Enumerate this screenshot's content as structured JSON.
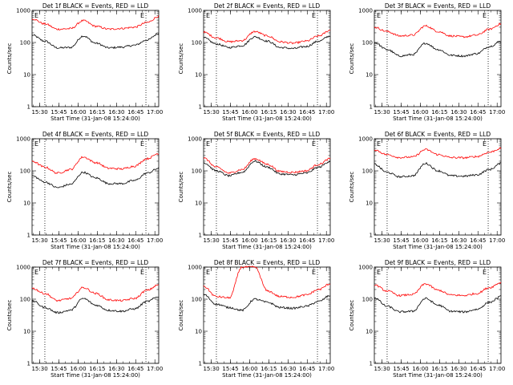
{
  "figure": {
    "time_ticks": [
      "15:30",
      "15:45",
      "16:00",
      "16:15",
      "16:30",
      "16:45",
      "17:00"
    ],
    "y_ticks": [
      "1",
      "10",
      "100",
      "1000"
    ],
    "ylabel": "Counts/sec",
    "xlabel": "Start Time (31-Jan-08 15:24:00)",
    "edge_marker": "E",
    "colors": {
      "events": "#000000",
      "lld": "#ff0000",
      "dotted": "#000000"
    }
  },
  "chart_data": [
    {
      "type": "line",
      "title": "Det 1f BLACK = Events, RED = LLD",
      "xlabel": "Start Time (31-Jan-08 15:24:00)",
      "ylabel": "Counts/sec",
      "xlim": [
        "15:24",
        "17:03"
      ],
      "ylim": [
        1,
        1000
      ],
      "yscale": "log",
      "x": [
        "15:24",
        "15:34",
        "15:44",
        "15:54",
        "16:04",
        "16:14",
        "16:24",
        "16:34",
        "16:44",
        "16:54",
        "17:03"
      ],
      "series": [
        {
          "name": "Events",
          "values": [
            170,
            110,
            68,
            70,
            160,
            95,
            68,
            72,
            82,
            120,
            190
          ]
        },
        {
          "name": "LLD",
          "values": [
            550,
            380,
            260,
            270,
            480,
            320,
            260,
            275,
            300,
            420,
            650
          ]
        }
      ]
    },
    {
      "type": "line",
      "title": "Det 2f BLACK = Events, RED = LLD",
      "xlabel": "Start Time (31-Jan-08 15:24:00)",
      "ylabel": "Counts/sec",
      "xlim": [
        "15:24",
        "17:03"
      ],
      "ylim": [
        1,
        1000
      ],
      "yscale": "log",
      "x": [
        "15:24",
        "15:34",
        "15:44",
        "15:54",
        "16:04",
        "16:14",
        "16:24",
        "16:34",
        "16:44",
        "16:54",
        "17:03"
      ],
      "series": [
        {
          "name": "Events",
          "values": [
            140,
            90,
            70,
            80,
            150,
            110,
            70,
            65,
            75,
            110,
            160
          ]
        },
        {
          "name": "LLD",
          "values": [
            210,
            140,
            105,
            115,
            220,
            160,
            105,
            95,
            110,
            160,
            240
          ]
        }
      ]
    },
    {
      "type": "line",
      "title": "Det 3f BLACK = Events, RED = LLD",
      "xlabel": "Start Time (31-Jan-08 15:24:00)",
      "ylabel": "Counts/sec",
      "xlim": [
        "15:24",
        "17:03"
      ],
      "ylim": [
        1,
        1000
      ],
      "yscale": "log",
      "x": [
        "15:24",
        "15:34",
        "15:44",
        "15:54",
        "16:04",
        "16:14",
        "16:24",
        "16:34",
        "16:44",
        "16:54",
        "17:03"
      ],
      "series": [
        {
          "name": "Events",
          "values": [
            100,
            60,
            38,
            42,
            95,
            60,
            40,
            38,
            45,
            75,
            110
          ]
        },
        {
          "name": "LLD",
          "values": [
            300,
            220,
            160,
            170,
            330,
            220,
            160,
            150,
            170,
            260,
            380
          ]
        }
      ]
    },
    {
      "type": "line",
      "title": "Det 4f BLACK = Events, RED = LLD",
      "xlabel": "Start Time (31-Jan-08 15:24:00)",
      "ylabel": "Counts/sec",
      "xlim": [
        "15:24",
        "17:03"
      ],
      "ylim": [
        1,
        1000
      ],
      "yscale": "log",
      "x": [
        "15:24",
        "15:34",
        "15:44",
        "15:54",
        "16:04",
        "16:14",
        "16:24",
        "16:34",
        "16:44",
        "16:54",
        "17:03"
      ],
      "series": [
        {
          "name": "Events",
          "values": [
            70,
            45,
            30,
            38,
            90,
            60,
            40,
            40,
            50,
            85,
            120
          ]
        },
        {
          "name": "LLD",
          "values": [
            200,
            130,
            85,
            110,
            270,
            180,
            120,
            115,
            140,
            240,
            350
          ]
        }
      ]
    },
    {
      "type": "line",
      "title": "Det 5f BLACK = Events, RED = LLD",
      "xlabel": "Start Time (31-Jan-08 15:24:00)",
      "ylabel": "Counts/sec",
      "xlim": [
        "15:24",
        "17:03"
      ],
      "ylim": [
        1,
        1000
      ],
      "yscale": "log",
      "x": [
        "15:24",
        "15:34",
        "15:44",
        "15:54",
        "16:04",
        "16:14",
        "16:24",
        "16:34",
        "16:44",
        "16:54",
        "17:03"
      ],
      "series": [
        {
          "name": "Events",
          "values": [
            180,
            100,
            70,
            90,
            200,
            130,
            80,
            75,
            85,
            130,
            200
          ]
        },
        {
          "name": "LLD",
          "values": [
            250,
            130,
            85,
            110,
            240,
            160,
            95,
            90,
            100,
            160,
            240
          ]
        }
      ]
    },
    {
      "type": "line",
      "title": "Det 6f BLACK = Events, RED = LLD",
      "xlabel": "Start Time (31-Jan-08 15:24:00)",
      "ylabel": "Counts/sec",
      "xlim": [
        "15:24",
        "17:03"
      ],
      "ylim": [
        1,
        1000
      ],
      "yscale": "log",
      "x": [
        "15:24",
        "15:34",
        "15:44",
        "15:54",
        "16:04",
        "16:14",
        "16:24",
        "16:34",
        "16:44",
        "16:54",
        "17:03"
      ],
      "series": [
        {
          "name": "Events",
          "values": [
            160,
            90,
            65,
            70,
            170,
            100,
            70,
            68,
            75,
            110,
            170
          ]
        },
        {
          "name": "LLD",
          "values": [
            450,
            320,
            260,
            270,
            460,
            320,
            260,
            255,
            280,
            380,
            500
          ]
        }
      ]
    },
    {
      "type": "line",
      "title": "Det 7f BLACK = Events, RED = LLD",
      "xlabel": "Start Time (31-Jan-08 15:24:00)",
      "ylabel": "Counts/sec",
      "xlim": [
        "15:24",
        "17:03"
      ],
      "ylim": [
        1,
        1000
      ],
      "yscale": "log",
      "x": [
        "15:24",
        "15:34",
        "15:44",
        "15:54",
        "16:04",
        "16:14",
        "16:24",
        "16:34",
        "16:44",
        "16:54",
        "17:03"
      ],
      "series": [
        {
          "name": "Events",
          "values": [
            90,
            55,
            38,
            45,
            105,
            65,
            45,
            42,
            50,
            85,
            120
          ]
        },
        {
          "name": "LLD",
          "values": [
            220,
            150,
            90,
            105,
            230,
            150,
            95,
            90,
            105,
            190,
            280
          ]
        }
      ]
    },
    {
      "type": "line",
      "title": "Det 8f BLACK = Events, RED = LLD",
      "xlabel": "Start Time (31-Jan-08 15:24:00)",
      "ylabel": "Counts/sec",
      "xlim": [
        "15:24",
        "17:03"
      ],
      "ylim": [
        1,
        1000
      ],
      "yscale": "log",
      "x": [
        "15:24",
        "15:34",
        "15:44",
        "15:54",
        "16:04",
        "16:14",
        "16:24",
        "16:34",
        "16:44",
        "16:54",
        "17:03"
      ],
      "series": [
        {
          "name": "Events",
          "values": [
            140,
            70,
            55,
            45,
            100,
            80,
            55,
            52,
            60,
            85,
            130
          ]
        },
        {
          "name": "LLD",
          "values": [
            250,
            120,
            110,
            1000,
            1000,
            180,
            120,
            115,
            135,
            200,
            300
          ]
        }
      ]
    },
    {
      "type": "line",
      "title": "Det 9f BLACK = Events, RED = LLD",
      "xlabel": "Start Time (31-Jan-08 15:24:00)",
      "ylabel": "Counts/sec",
      "xlim": [
        "15:24",
        "17:03"
      ],
      "ylim": [
        1,
        1000
      ],
      "yscale": "log",
      "x": [
        "15:24",
        "15:34",
        "15:44",
        "15:54",
        "16:04",
        "16:14",
        "16:24",
        "16:34",
        "16:44",
        "16:54",
        "17:03"
      ],
      "series": [
        {
          "name": "Events",
          "values": [
            110,
            60,
            40,
            42,
            105,
            65,
            42,
            40,
            48,
            80,
            120
          ]
        },
        {
          "name": "LLD",
          "values": [
            280,
            180,
            130,
            140,
            300,
            190,
            135,
            130,
            150,
            230,
            330
          ]
        }
      ]
    }
  ]
}
